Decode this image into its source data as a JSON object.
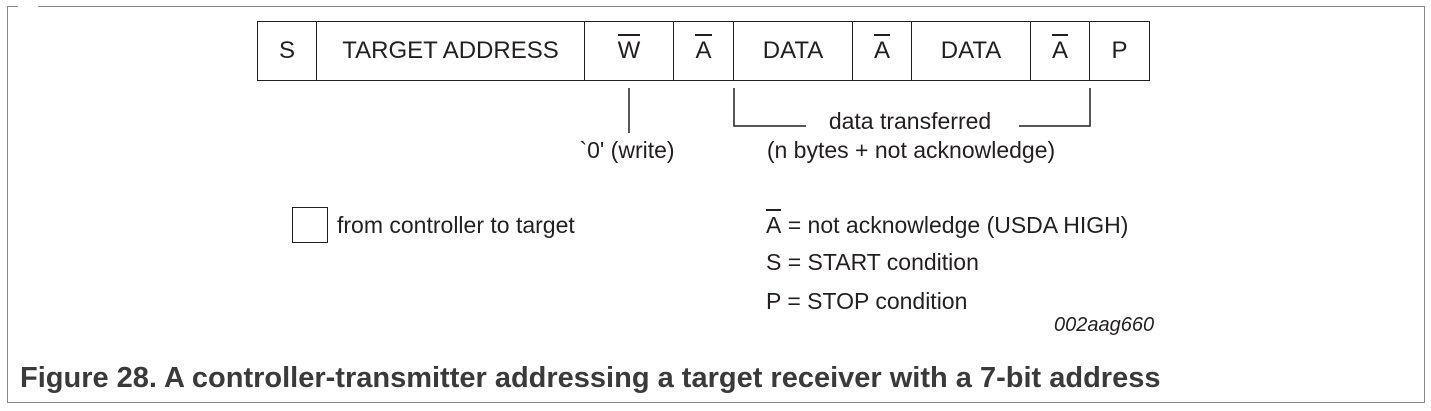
{
  "sequence": [
    {
      "label": "S",
      "overline": false
    },
    {
      "label": "TARGET ADDRESS",
      "overline": false
    },
    {
      "label": "W",
      "overline": true
    },
    {
      "label": "A",
      "overline": true
    },
    {
      "label": "DATA",
      "overline": false
    },
    {
      "label": "A",
      "overline": true
    },
    {
      "label": "DATA",
      "overline": false
    },
    {
      "label": "A",
      "overline": true
    },
    {
      "label": "P",
      "overline": false
    }
  ],
  "annotations": {
    "write_note": "`0' (write)",
    "data_line1": "data transferred",
    "data_line2": "(n bytes + not acknowledge)"
  },
  "legend": {
    "box_label": "from controller to target",
    "a_symbol": "A",
    "a_def": " = not acknowledge (USDA HIGH)",
    "s_def": "S = START condition",
    "p_def": "P = STOP condition"
  },
  "figure_code": "002aag660",
  "caption": "Figure 28.  A controller-transmitter addressing a target receiver with a 7-bit address"
}
